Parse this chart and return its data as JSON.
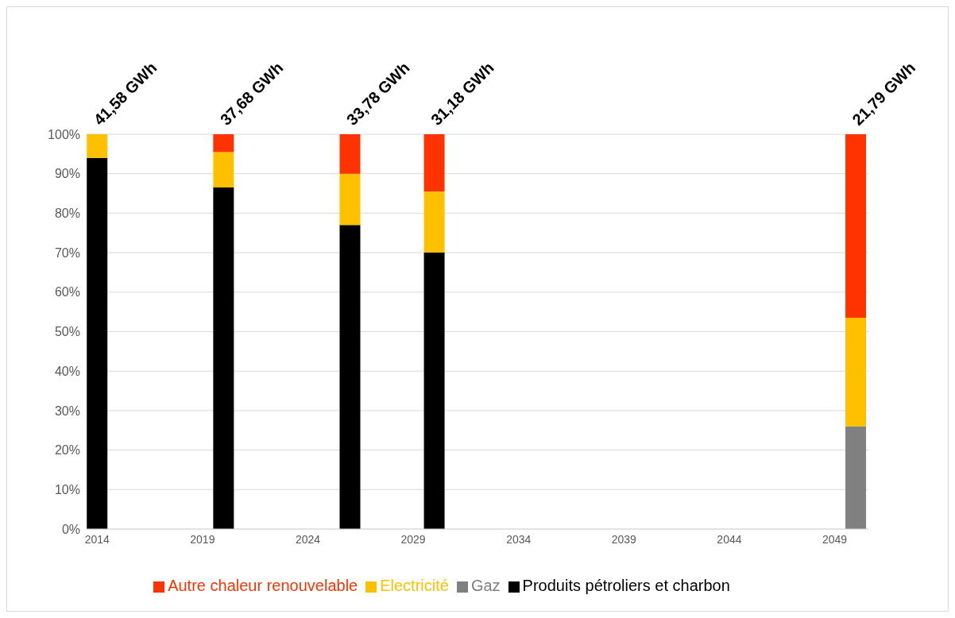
{
  "chart_data": {
    "type": "bar",
    "stacked": true,
    "x": [
      2014,
      2020,
      2026,
      2030,
      2050
    ],
    "xlim": [
      2013.5,
      2050.6
    ],
    "xticks": [
      2014,
      2019,
      2024,
      2029,
      2034,
      2039,
      2044,
      2049
    ],
    "ylim": [
      0,
      100
    ],
    "yticks": [
      {
        "value": 0,
        "label": "0%"
      },
      {
        "value": 10,
        "label": "10%"
      },
      {
        "value": 20,
        "label": "20%"
      },
      {
        "value": 30,
        "label": "30%"
      },
      {
        "value": 40,
        "label": "40%"
      },
      {
        "value": 50,
        "label": "50%"
      },
      {
        "value": 60,
        "label": "60%"
      },
      {
        "value": 70,
        "label": "70%"
      },
      {
        "value": 80,
        "label": "80%"
      },
      {
        "value": 90,
        "label": "90%"
      },
      {
        "value": 100,
        "label": "100%"
      }
    ],
    "grid": "y",
    "legend": "bottom",
    "series": [
      {
        "name": "Produits pétroliers et charbon",
        "color": "#000000",
        "values": [
          94,
          86.5,
          77,
          70,
          0
        ]
      },
      {
        "name": "Gaz",
        "color": "#808080",
        "values": [
          0,
          0,
          0,
          0,
          26
        ]
      },
      {
        "name": "Electricité",
        "color": "#ffc000",
        "values": [
          6,
          9,
          13,
          15.5,
          27.5
        ]
      },
      {
        "name": "Autre chaleur renouvelable",
        "color": "#ff3300",
        "values": [
          0,
          4.5,
          10,
          14.5,
          46.5
        ]
      }
    ],
    "annotations": [
      {
        "text": "41,58 GWh",
        "x": 2014,
        "y": 100
      },
      {
        "text": "37,68 GWh",
        "x": 2020,
        "y": 100
      },
      {
        "text": "33,78 GWh",
        "x": 2026,
        "y": 100
      },
      {
        "text": "31,18 GWh",
        "x": 2030,
        "y": 100
      },
      {
        "text": "21,79 GWh",
        "x": 2050,
        "y": 100
      }
    ]
  }
}
